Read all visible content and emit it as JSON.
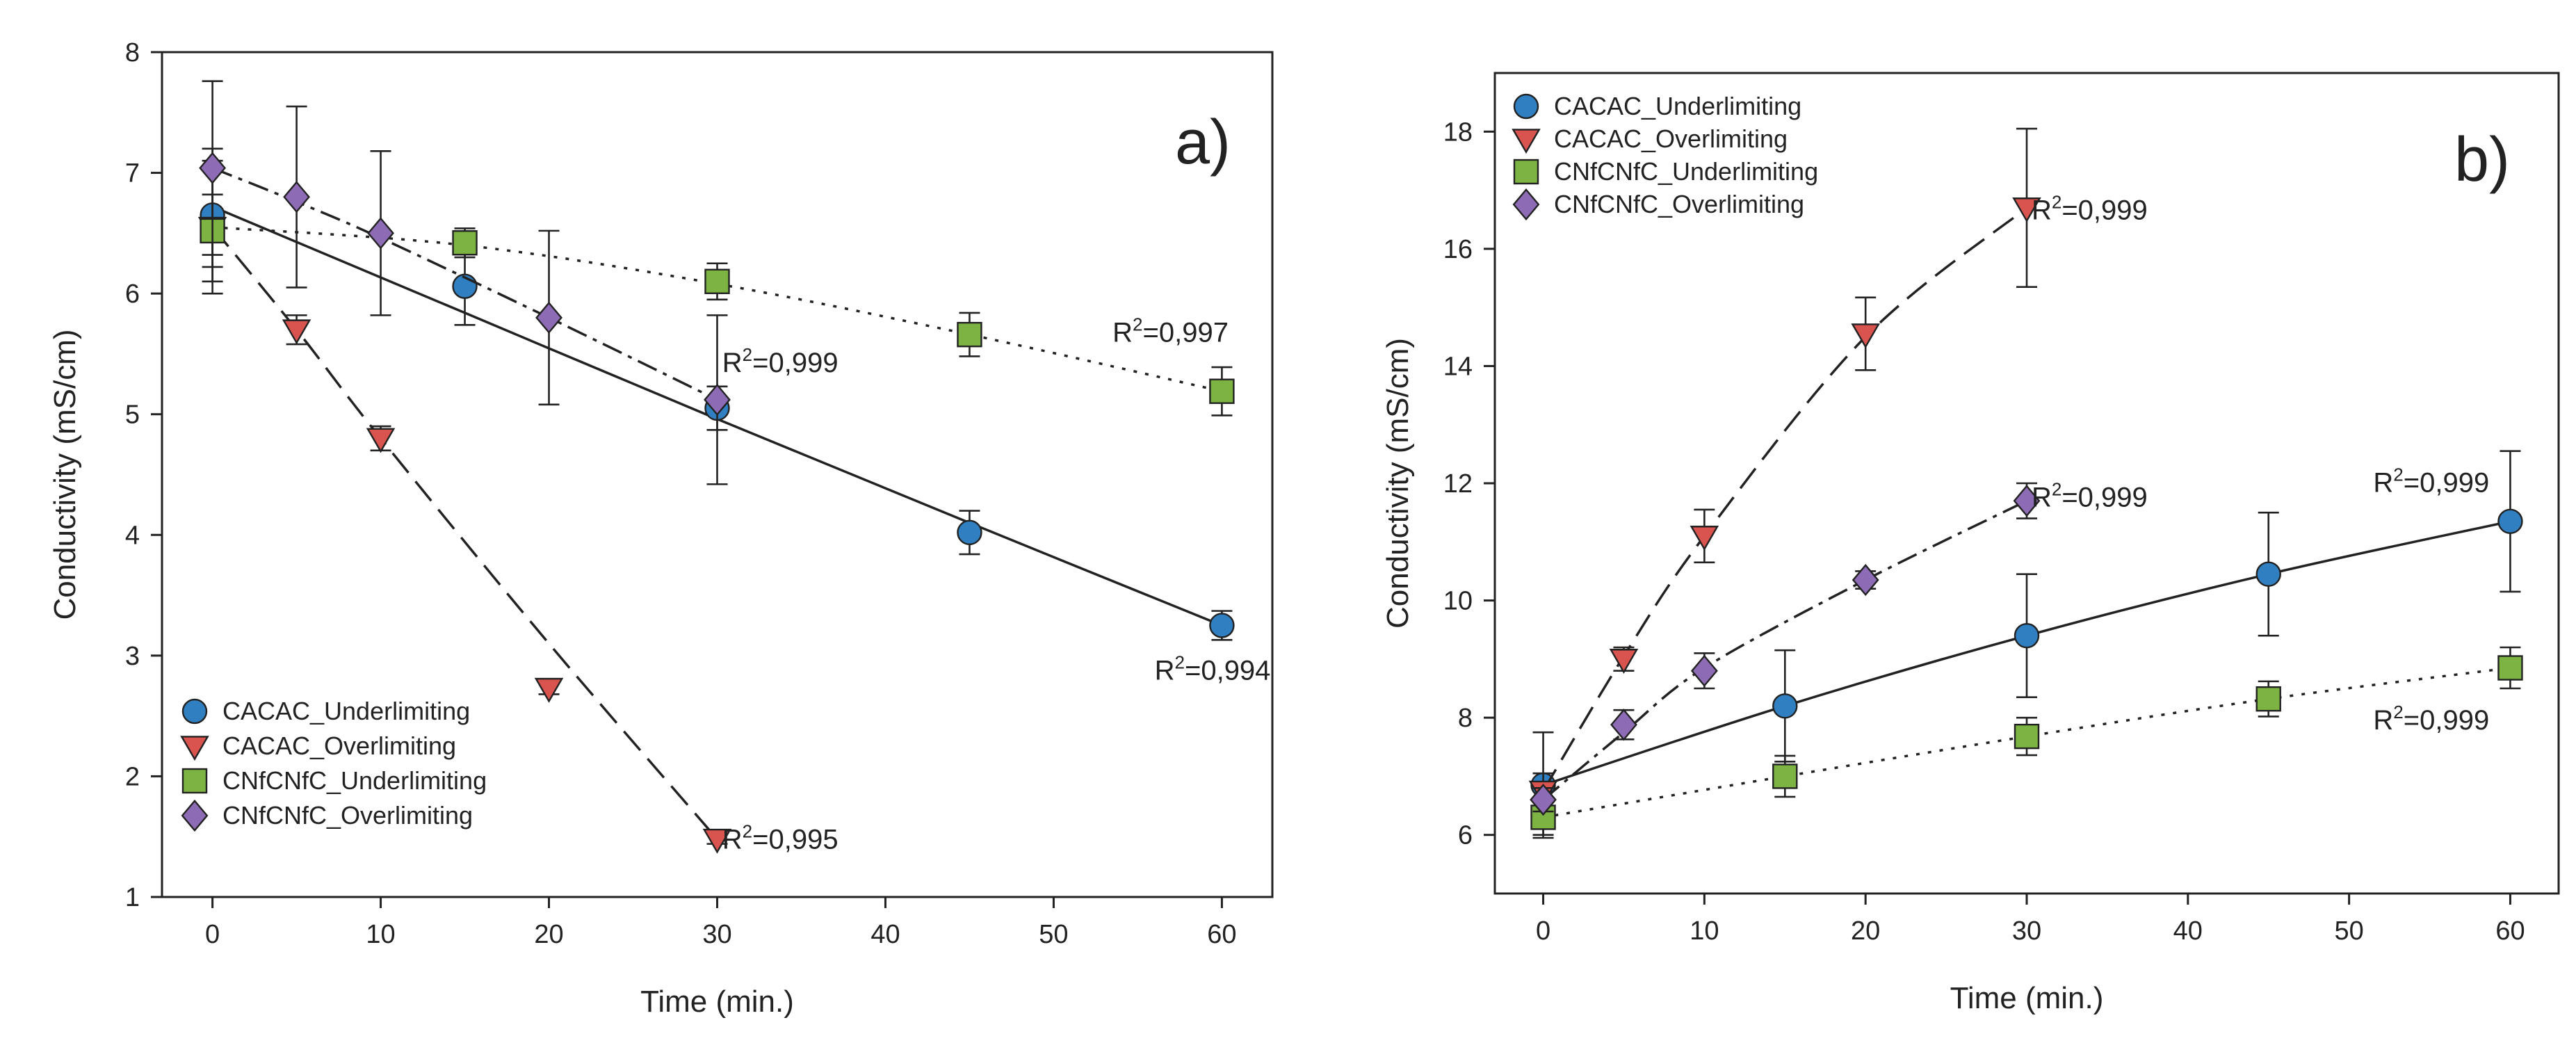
{
  "chart_data": [
    {
      "type": "scatter",
      "panel_label": "a)",
      "xlabel": "Time (min.)",
      "ylabel": "Conductivity (mS/cm)",
      "xlim": [
        -3,
        63
      ],
      "ylim": [
        1,
        8
      ],
      "xticks": [
        0,
        10,
        20,
        30,
        40,
        50,
        60
      ],
      "yticks": [
        1,
        2,
        3,
        4,
        5,
        6,
        7,
        8
      ],
      "grid": false,
      "legend_position": "bottom-left",
      "series": [
        {
          "name": "CACAC_Underlimiting",
          "marker": "circle",
          "color": "#2f7fc1",
          "line_style": "solid",
          "x": [
            0,
            15,
            30,
            45,
            60
          ],
          "y": [
            6.65,
            6.06,
            5.05,
            4.02,
            3.25
          ],
          "err": [
            0.55,
            0.32,
            0.18,
            0.18,
            0.12
          ],
          "fit_y": [
            6.72,
            5.84,
            4.96,
            4.1,
            3.25
          ],
          "annotation": {
            "text": "R",
            "sup": "2",
            "value": "=0,994",
            "x": 56,
            "y": 2.8
          }
        },
        {
          "name": "CACAC_Overlimiting",
          "marker": "triangle-down",
          "color": "#d9534f",
          "line_style": "dashed",
          "x": [
            0,
            5,
            10,
            20,
            30
          ],
          "y": [
            6.55,
            5.7,
            4.8,
            2.73,
            1.48
          ],
          "err": [
            0.55,
            0.12,
            0.1,
            0.05,
            0.04
          ],
          "fit_y": [
            6.55,
            5.7,
            4.8,
            3.1,
            1.48
          ],
          "annotation": {
            "text": "R",
            "sup": "2",
            "value": "=0,995",
            "x": 30.3,
            "y": 1.4
          }
        },
        {
          "name": "CNfCNfC_Underlimiting",
          "marker": "square",
          "color": "#7cb342",
          "line_style": "dotted",
          "x": [
            0,
            15,
            30,
            45,
            60
          ],
          "y": [
            6.52,
            6.42,
            6.1,
            5.66,
            5.19
          ],
          "err": [
            0.3,
            0.12,
            0.15,
            0.18,
            0.2
          ],
          "fit_y": [
            6.55,
            6.4,
            6.08,
            5.66,
            5.19
          ],
          "annotation": {
            "text": "R",
            "sup": "2",
            "value": "=0,997",
            "x": 53.5,
            "y": 5.6
          }
        },
        {
          "name": "CNfCNfC_Overlimiting",
          "marker": "diamond",
          "color": "#8e6bb5",
          "line_style": "dash-dot",
          "x": [
            0,
            5,
            10,
            20,
            30
          ],
          "y": [
            7.04,
            6.8,
            6.5,
            5.8,
            5.12
          ],
          "err": [
            0.72,
            0.75,
            0.68,
            0.72,
            0.7
          ],
          "fit_y": [
            7.04,
            6.76,
            6.46,
            5.8,
            5.12
          ],
          "annotation": {
            "text": "R",
            "sup": "2",
            "value": "=0,999",
            "x": 30.3,
            "y": 5.35
          }
        }
      ]
    },
    {
      "type": "scatter",
      "panel_label": "b)",
      "xlabel": "Time (min.)",
      "ylabel": "Conductivity (mS/cm)",
      "xlim": [
        -3,
        63
      ],
      "ylim": [
        5,
        19
      ],
      "xticks": [
        0,
        10,
        20,
        30,
        40,
        50,
        60
      ],
      "yticks": [
        6,
        8,
        10,
        12,
        14,
        16,
        18
      ],
      "grid": false,
      "legend_position": "top-left",
      "series": [
        {
          "name": "CACAC_Underlimiting",
          "marker": "circle",
          "color": "#2f7fc1",
          "line_style": "solid",
          "x": [
            0,
            15,
            30,
            45,
            60
          ],
          "y": [
            6.85,
            8.2,
            9.4,
            10.45,
            11.35
          ],
          "err": [
            0.9,
            0.95,
            1.05,
            1.05,
            1.2
          ],
          "fit_y": [
            6.85,
            8.2,
            9.4,
            10.45,
            11.35
          ],
          "annotation": {
            "text": "R",
            "sup": "2",
            "value": "=0,999",
            "x": 51.5,
            "y": 11.85
          }
        },
        {
          "name": "CACAC_Overlimiting",
          "marker": "triangle-down",
          "color": "#d9534f",
          "line_style": "dashed",
          "x": [
            0,
            5,
            10,
            20,
            30
          ],
          "y": [
            6.75,
            9.0,
            11.1,
            14.55,
            16.7
          ],
          "err": [
            0.3,
            0.2,
            0.45,
            0.62,
            1.35
          ],
          "fit_y": [
            6.75,
            9.05,
            11.1,
            14.5,
            16.7
          ],
          "annotation": {
            "text": "R",
            "sup": "2",
            "value": "=0,999",
            "x": 30.3,
            "y": 16.5
          }
        },
        {
          "name": "CNfCNfC_Underlimiting",
          "marker": "square",
          "color": "#7cb342",
          "line_style": "dotted",
          "x": [
            0,
            15,
            30,
            45,
            60
          ],
          "y": [
            6.3,
            7.0,
            7.68,
            8.32,
            8.85
          ],
          "err": [
            0.3,
            0.35,
            0.32,
            0.3,
            0.35
          ],
          "fit_y": [
            6.3,
            7.0,
            7.68,
            8.32,
            8.85
          ],
          "annotation": {
            "text": "R",
            "sup": "2",
            "value": "=0,999",
            "x": 51.5,
            "y": 7.8
          }
        },
        {
          "name": "CNfCNfC_Overlimiting",
          "marker": "diamond",
          "color": "#8e6bb5",
          "line_style": "dash-dot",
          "x": [
            0,
            5,
            10,
            20,
            30
          ],
          "y": [
            6.6,
            7.88,
            8.8,
            10.35,
            11.7
          ],
          "err": [
            0.2,
            0.25,
            0.3,
            0.15,
            0.3
          ],
          "fit_y": [
            6.6,
            7.75,
            8.85,
            10.35,
            11.7
          ],
          "annotation": {
            "text": "R",
            "sup": "2",
            "value": "=0,999",
            "x": 30.3,
            "y": 11.6
          }
        }
      ]
    }
  ]
}
